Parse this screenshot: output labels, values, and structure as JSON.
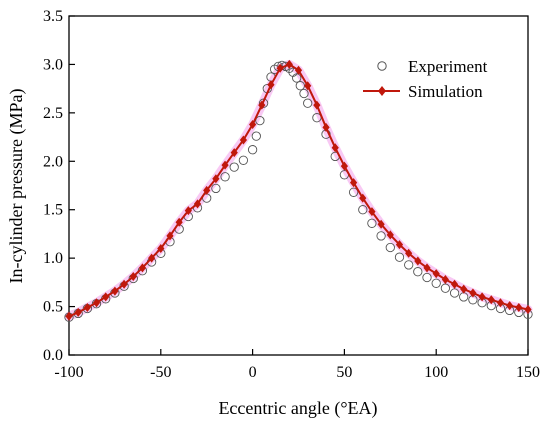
{
  "chart_data": {
    "type": "line",
    "title": "",
    "xlabel": "Eccentric angle (°EA)",
    "ylabel": "In-cylinder pressure (MPa)",
    "xlim": [
      -100,
      150
    ],
    "ylim": [
      0.0,
      3.5
    ],
    "xticks": [
      -100,
      -50,
      0,
      50,
      100,
      150
    ],
    "xtick_labels": [
      "-100",
      "-50",
      "0",
      "50",
      "100",
      "150"
    ],
    "yticks": [
      0.0,
      0.5,
      1.0,
      1.5,
      2.0,
      2.5,
      3.0,
      3.5
    ],
    "ytick_labels": [
      "0.0",
      "0.5",
      "1.0",
      "1.5",
      "2.0",
      "2.5",
      "3.0",
      "3.5"
    ],
    "grid": false,
    "legend_position": "top-right",
    "series": [
      {
        "name": "Experiment",
        "style": "open-circle",
        "color": "#555555",
        "x": [
          -100,
          -95,
          -90,
          -85,
          -80,
          -75,
          -70,
          -65,
          -60,
          -55,
          -50,
          -45,
          -40,
          -35,
          -30,
          -25,
          -20,
          -15,
          -10,
          -5,
          0,
          2,
          4,
          6,
          8,
          10,
          12,
          14,
          16,
          18,
          20,
          22,
          24,
          26,
          28,
          30,
          35,
          40,
          45,
          50,
          55,
          60,
          65,
          70,
          75,
          80,
          85,
          90,
          95,
          100,
          105,
          110,
          115,
          120,
          125,
          130,
          135,
          140,
          145,
          150
        ],
        "y": [
          0.39,
          0.43,
          0.48,
          0.53,
          0.58,
          0.64,
          0.71,
          0.79,
          0.87,
          0.96,
          1.05,
          1.17,
          1.3,
          1.43,
          1.52,
          1.62,
          1.72,
          1.84,
          1.94,
          2.01,
          2.12,
          2.26,
          2.42,
          2.6,
          2.75,
          2.87,
          2.95,
          2.98,
          2.99,
          2.98,
          2.96,
          2.92,
          2.86,
          2.78,
          2.7,
          2.6,
          2.45,
          2.28,
          2.05,
          1.86,
          1.68,
          1.5,
          1.36,
          1.23,
          1.11,
          1.01,
          0.93,
          0.86,
          0.8,
          0.74,
          0.69,
          0.64,
          0.6,
          0.57,
          0.54,
          0.51,
          0.48,
          0.46,
          0.44,
          0.42
        ]
      },
      {
        "name": "Simulation",
        "style": "line-diamond",
        "color": "#c0180c",
        "x": [
          -100,
          -95,
          -90,
          -85,
          -80,
          -75,
          -70,
          -65,
          -60,
          -55,
          -50,
          -45,
          -40,
          -35,
          -30,
          -25,
          -20,
          -15,
          -10,
          -5,
          0,
          5,
          10,
          15,
          20,
          25,
          30,
          35,
          40,
          45,
          50,
          55,
          60,
          65,
          70,
          75,
          80,
          85,
          90,
          95,
          100,
          105,
          110,
          115,
          120,
          125,
          130,
          135,
          140,
          145,
          150
        ],
        "y": [
          0.4,
          0.44,
          0.49,
          0.54,
          0.6,
          0.66,
          0.73,
          0.81,
          0.9,
          1.0,
          1.1,
          1.23,
          1.37,
          1.49,
          1.56,
          1.7,
          1.82,
          1.96,
          2.09,
          2.22,
          2.38,
          2.58,
          2.79,
          2.96,
          3.0,
          2.94,
          2.78,
          2.58,
          2.35,
          2.14,
          1.95,
          1.78,
          1.62,
          1.48,
          1.35,
          1.24,
          1.14,
          1.05,
          0.97,
          0.9,
          0.84,
          0.78,
          0.73,
          0.68,
          0.64,
          0.6,
          0.57,
          0.54,
          0.51,
          0.49,
          0.47
        ]
      }
    ]
  }
}
